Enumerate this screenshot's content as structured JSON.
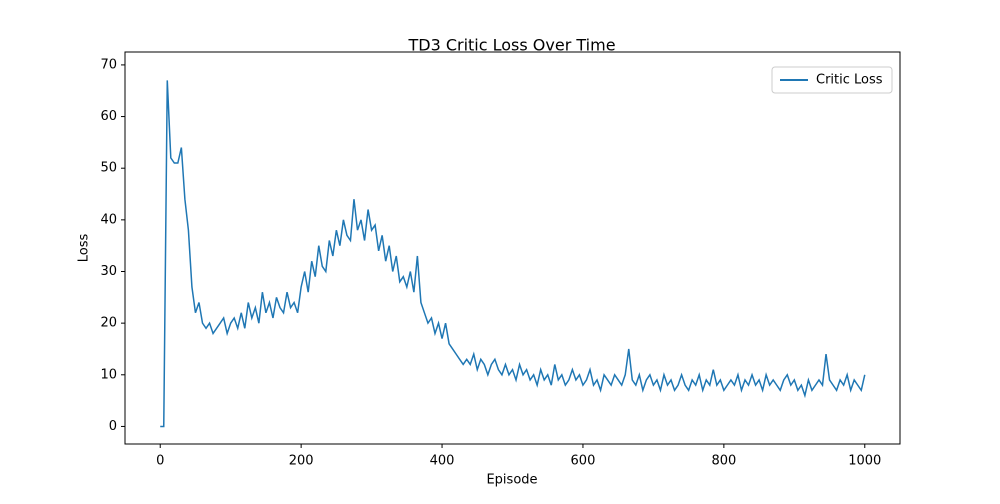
{
  "chart_data": {
    "type": "line",
    "title": "TD3 Critic Loss Over Time",
    "x_label": "Episode",
    "y_label": "Loss",
    "x": [
      0,
      5,
      10,
      15,
      20,
      25,
      30,
      35,
      40,
      45,
      50,
      55,
      60,
      65,
      70,
      75,
      80,
      85,
      90,
      95,
      100,
      105,
      110,
      115,
      120,
      125,
      130,
      135,
      140,
      145,
      150,
      155,
      160,
      165,
      170,
      175,
      180,
      185,
      190,
      195,
      200,
      205,
      210,
      215,
      220,
      225,
      230,
      235,
      240,
      245,
      250,
      255,
      260,
      265,
      270,
      275,
      280,
      285,
      290,
      295,
      300,
      305,
      310,
      315,
      320,
      325,
      330,
      335,
      340,
      345,
      350,
      355,
      360,
      365,
      370,
      375,
      380,
      385,
      390,
      395,
      400,
      405,
      410,
      415,
      420,
      425,
      430,
      435,
      440,
      445,
      450,
      455,
      460,
      465,
      470,
      475,
      480,
      485,
      490,
      495,
      500,
      505,
      510,
      515,
      520,
      525,
      530,
      535,
      540,
      545,
      550,
      555,
      560,
      565,
      570,
      575,
      580,
      585,
      590,
      595,
      600,
      605,
      610,
      615,
      620,
      625,
      630,
      635,
      640,
      645,
      650,
      655,
      660,
      665,
      670,
      675,
      680,
      685,
      690,
      695,
      700,
      705,
      710,
      715,
      720,
      725,
      730,
      735,
      740,
      745,
      750,
      755,
      760,
      765,
      770,
      775,
      780,
      785,
      790,
      795,
      800,
      805,
      810,
      815,
      820,
      825,
      830,
      835,
      840,
      845,
      850,
      855,
      860,
      865,
      870,
      875,
      880,
      885,
      890,
      895,
      900,
      905,
      910,
      915,
      920,
      925,
      930,
      935,
      940,
      945,
      950,
      955,
      960,
      965,
      970,
      975,
      980,
      985,
      990,
      995,
      1000
    ],
    "series": [
      {
        "name": "Critic Loss",
        "color": "#1f77b4",
        "values": [
          0,
          0,
          67,
          52,
          51,
          51,
          54,
          44,
          38,
          27,
          22,
          24,
          20,
          19,
          20,
          18,
          19,
          20,
          21,
          18,
          20,
          21,
          19,
          22,
          19,
          24,
          21,
          23,
          20,
          26,
          22,
          24,
          21,
          25,
          23,
          22,
          26,
          23,
          24,
          22,
          27,
          30,
          26,
          32,
          29,
          35,
          31,
          30,
          36,
          33,
          38,
          35,
          40,
          37,
          36,
          44,
          38,
          40,
          36,
          42,
          38,
          39,
          34,
          37,
          32,
          35,
          30,
          33,
          28,
          29,
          27,
          30,
          26,
          33,
          24,
          22,
          20,
          21,
          18,
          20,
          17,
          20,
          16,
          15,
          14,
          13,
          12,
          13,
          12,
          14,
          11,
          13,
          12,
          10,
          12,
          13,
          11,
          10,
          12,
          10,
          11,
          9,
          12,
          10,
          11,
          9,
          10,
          8,
          11,
          9,
          10,
          8,
          12,
          9,
          10,
          8,
          9,
          11,
          9,
          10,
          8,
          9,
          11,
          8,
          9,
          7,
          10,
          9,
          8,
          10,
          9,
          8,
          10,
          15,
          9,
          8,
          10,
          7,
          9,
          10,
          8,
          9,
          7,
          10,
          8,
          9,
          7,
          8,
          10,
          8,
          7,
          9,
          8,
          10,
          7,
          9,
          8,
          11,
          8,
          9,
          7,
          8,
          9,
          8,
          10,
          7,
          9,
          8,
          10,
          8,
          9,
          7,
          10,
          8,
          9,
          8,
          7,
          9,
          10,
          8,
          9,
          7,
          8,
          6,
          9,
          7,
          8,
          9,
          8,
          14,
          9,
          8,
          7,
          9,
          8,
          10,
          7,
          9,
          8,
          7,
          10
        ]
      }
    ],
    "xlim": [
      -50,
      1050
    ],
    "ylim": [
      -3.4,
      72.5
    ],
    "xticks": [
      0,
      200,
      400,
      600,
      800,
      1000
    ],
    "yticks": [
      0,
      10,
      20,
      30,
      40,
      50,
      60,
      70
    ],
    "legend": "upper right",
    "grid": false
  }
}
